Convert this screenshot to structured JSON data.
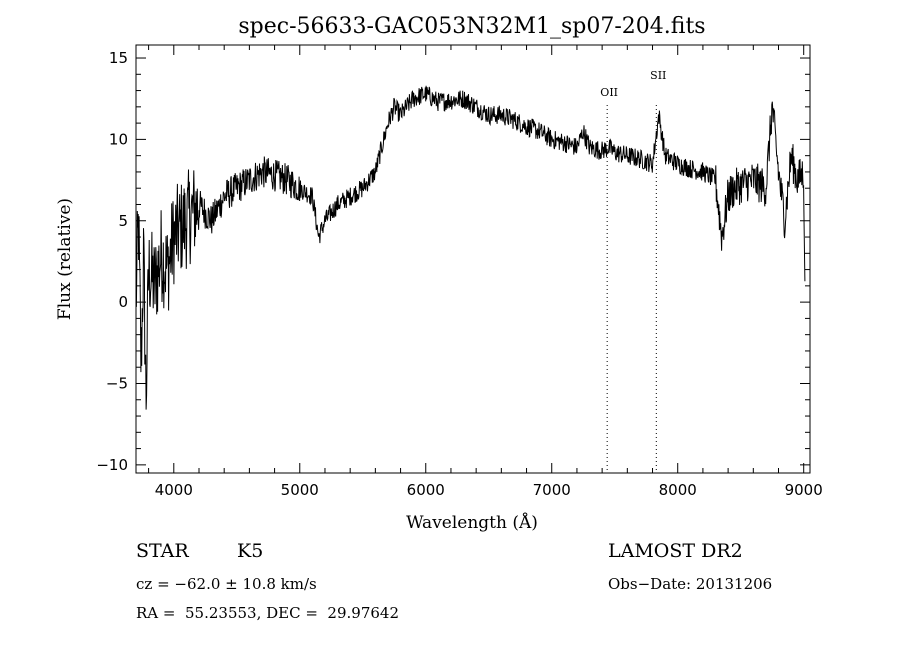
{
  "chart_data": {
    "type": "line",
    "title": "spec-56633-GAC053N32M1_sp07-204.fits",
    "xlabel": "Wavelength (Å)",
    "ylabel": "Flux (relative)",
    "xlim": [
      3700,
      9050
    ],
    "ylim": [
      -10.5,
      15.8
    ],
    "x_ticks": [
      4000,
      5000,
      6000,
      7000,
      8000,
      9000
    ],
    "y_ticks": [
      -10,
      -5,
      0,
      5,
      10,
      15
    ],
    "x_ticklabels": [
      "4000",
      "5000",
      "6000",
      "7000",
      "8000",
      "9000"
    ],
    "y_ticklabels": [
      "−10",
      "−5",
      "0",
      "5",
      "10",
      "15"
    ],
    "grid": false,
    "series": [
      {
        "x": [
          3700,
          3720,
          3740,
          3760,
          3780,
          3800,
          3850,
          3900,
          3950,
          4000,
          4100,
          4200,
          4300,
          4400,
          4500,
          4600,
          4700,
          4800,
          4900,
          5000,
          5100,
          5150,
          5200,
          5300,
          5400,
          5500,
          5600,
          5700,
          5750,
          5800,
          5900,
          6000,
          6100,
          6200,
          6300,
          6400,
          6500,
          6600,
          6700,
          6800,
          6900,
          7000,
          7100,
          7200,
          7250,
          7300,
          7400,
          7450,
          7500,
          7600,
          7700,
          7800,
          7850,
          7900,
          8000,
          8100,
          8200,
          8300,
          8350,
          8400,
          8450,
          8500,
          8600,
          8700,
          8750,
          8800,
          8850,
          8900,
          8950,
          9000,
          9010
        ],
        "y": [
          0,
          5,
          -4,
          3,
          -6,
          2,
          1,
          3,
          2,
          4,
          5,
          6,
          5,
          6.5,
          7,
          7.5,
          8,
          7.8,
          7.5,
          7,
          6.5,
          4,
          5,
          6,
          6.5,
          7,
          8,
          11,
          12,
          11.5,
          12.5,
          12.8,
          12.3,
          12.4,
          12.5,
          12.0,
          11.5,
          11.5,
          11.2,
          10.8,
          10.5,
          10.0,
          9.8,
          9.5,
          10.5,
          9.5,
          9.3,
          9.5,
          9.2,
          9.0,
          8.8,
          8.5,
          11.5,
          9.0,
          8.5,
          8.2,
          8.0,
          7.5,
          4.0,
          6.5,
          7.0,
          7.2,
          7.5,
          7.0,
          12.0,
          8.0,
          5.0,
          9.0,
          7.5,
          8.0,
          0.0
        ]
      }
    ],
    "annotations": [
      {
        "label": "OII",
        "x": 7440
      },
      {
        "label": "SII",
        "x": 7830
      }
    ]
  },
  "info": {
    "object_class": "STAR",
    "subclass": "K5",
    "survey": "LAMOST DR2",
    "cz": "cz = −62.0 ± 10.8 km/s",
    "obs_date": "Obs−Date: 20131206",
    "coords": "RA =  55.23553, DEC =  29.97642"
  },
  "colors": {
    "line": "#000000",
    "background": "#ffffff"
  }
}
